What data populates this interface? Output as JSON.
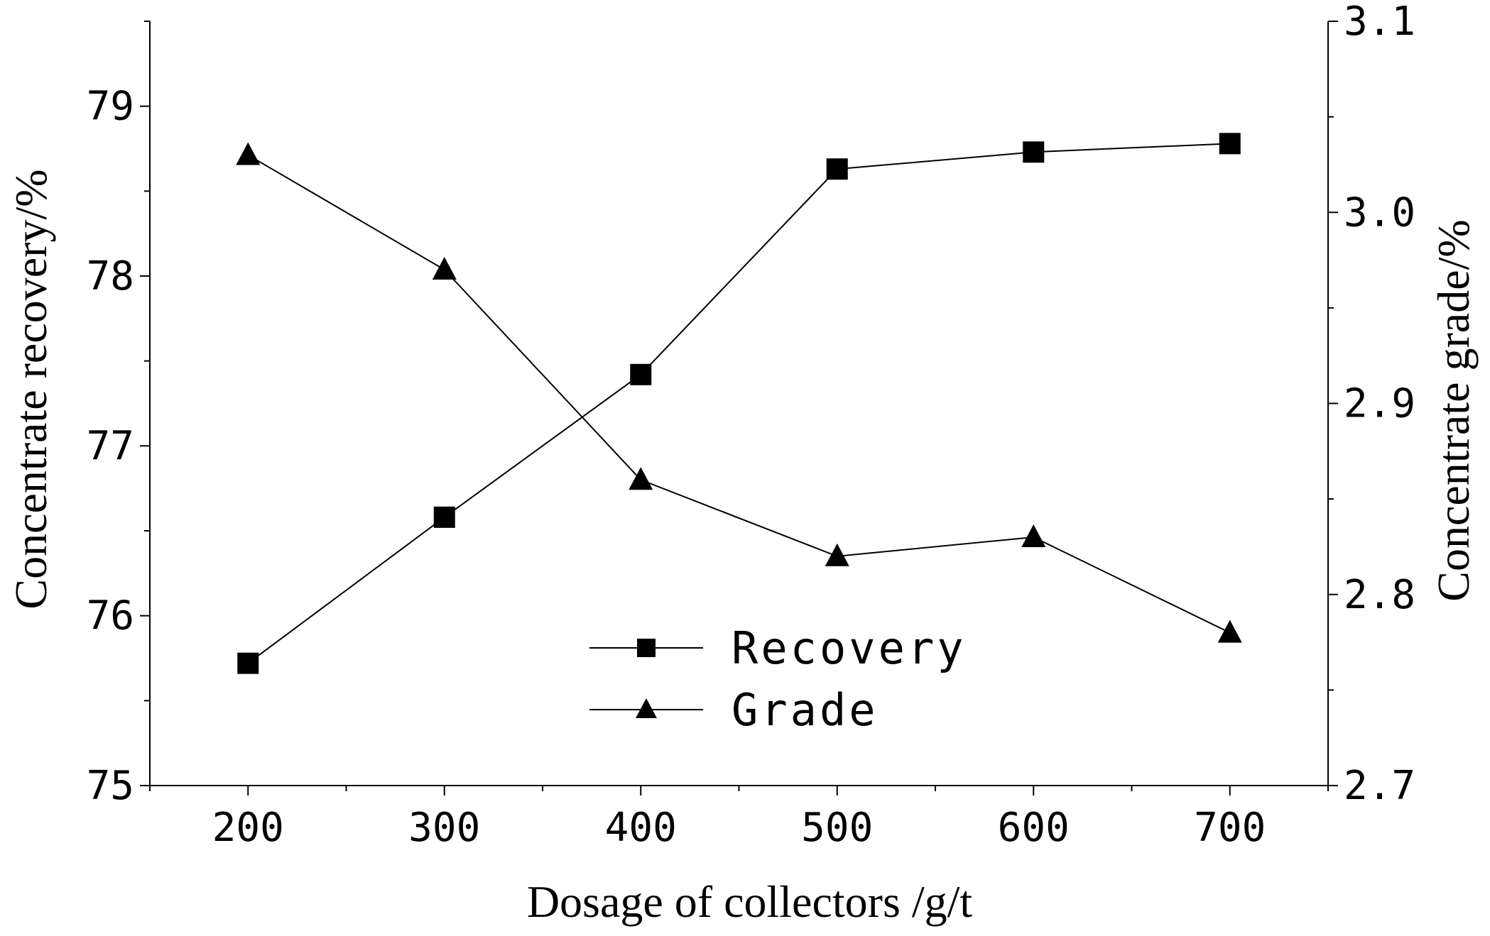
{
  "chart_data": {
    "type": "line",
    "title": "",
    "xlabel": "Dosage of collectors /g/t",
    "ylabel_left": "Concentrate recovery/%",
    "ylabel_right": "Concentrate grade/%",
    "x": [
      200,
      300,
      400,
      500,
      600,
      700
    ],
    "xlim": [
      150,
      750
    ],
    "x_ticks": [
      "200",
      "300",
      "400",
      "500",
      "600",
      "700"
    ],
    "ylim_left": [
      75,
      79.5
    ],
    "y_ticks_left": [
      "75",
      "76",
      "77",
      "78",
      "79"
    ],
    "ylim_right": [
      2.7,
      3.1
    ],
    "y_ticks_right": [
      "2.7",
      "2.8",
      "2.9",
      "3.0",
      "3.1"
    ],
    "series": [
      {
        "name": "Recovery",
        "marker": "square",
        "axis": "left",
        "values": [
          75.72,
          76.58,
          77.42,
          78.63,
          78.73,
          78.78
        ]
      },
      {
        "name": "Grade",
        "marker": "triangle",
        "axis": "right",
        "values": [
          3.03,
          2.97,
          2.86,
          2.82,
          2.83,
          2.78
        ]
      }
    ],
    "legend_position": "bottom-center",
    "grid": false
  }
}
